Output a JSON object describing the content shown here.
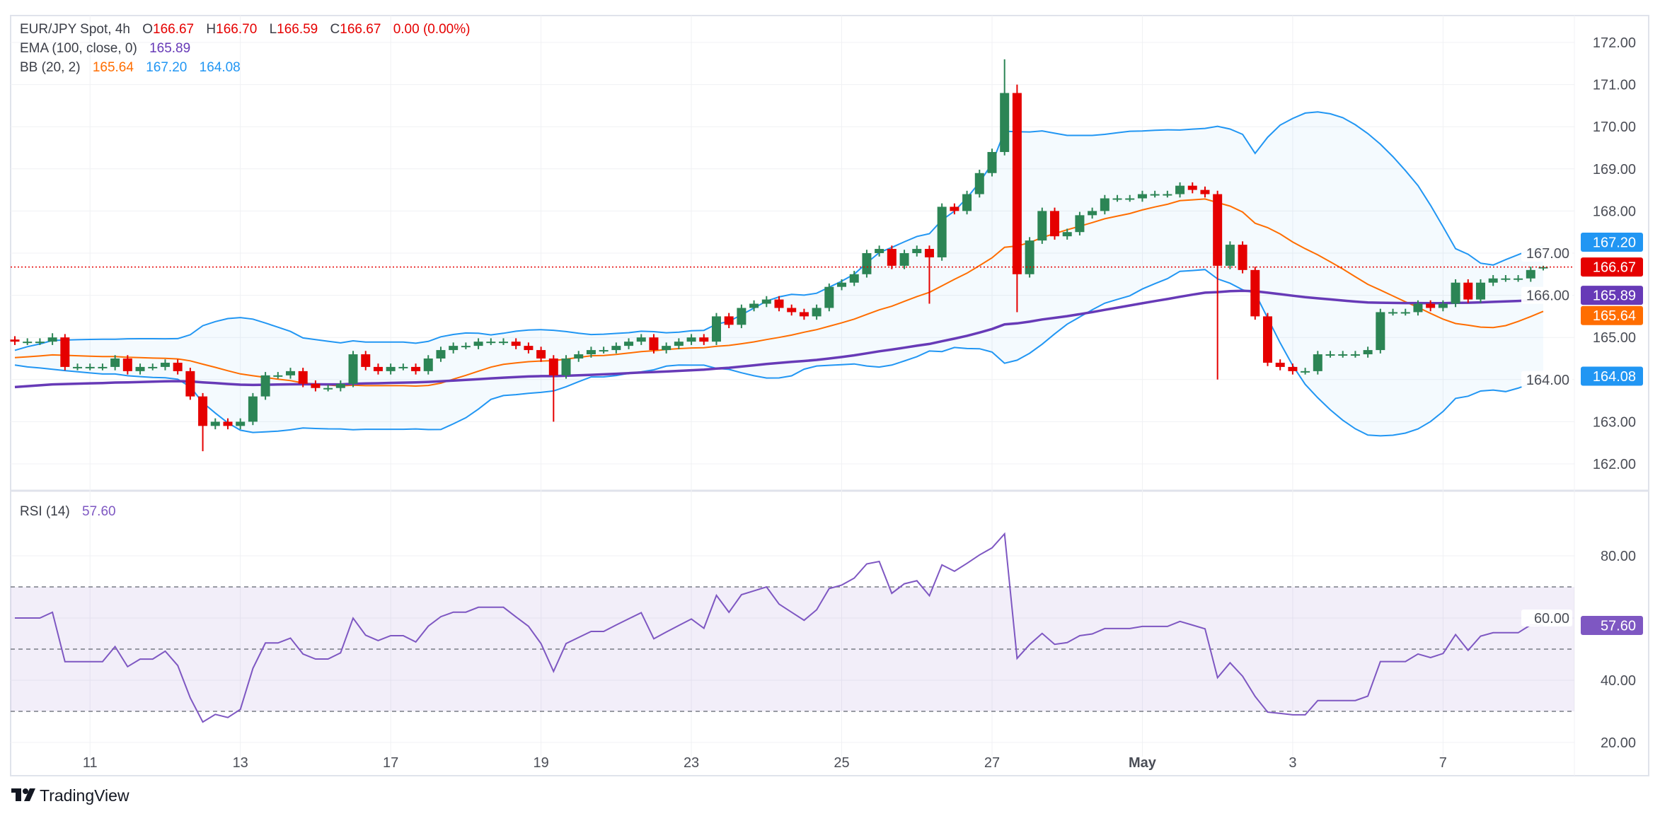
{
  "legend": {
    "symbol": "EUR/JPY Spot, 4h",
    "o_label": "O",
    "o_value": "166.67",
    "h_label": "H",
    "h_value": "166.70",
    "l_label": "L",
    "l_value": "166.59",
    "c_label": "C",
    "c_value": "166.67",
    "change": "0.00 (0.00%)",
    "ema_label": "EMA (100, close, 0)",
    "ema_value": "165.89",
    "bb_label": "BB (20, 2)",
    "bb_basis": "165.64",
    "bb_upper": "167.20",
    "bb_lower": "164.08",
    "rsi_label": "RSI (14)",
    "rsi_value": "57.60"
  },
  "price_axis": {
    "ticks": [
      "172.00",
      "171.00",
      "170.00",
      "169.00",
      "168.00",
      "167.00",
      "166.00",
      "165.00",
      "164.00",
      "163.00",
      "162.00"
    ],
    "badges": [
      {
        "value": "167.20",
        "color": "#2196f3"
      },
      {
        "value": "166.67",
        "color": "#e50000"
      },
      {
        "value": "165.89",
        "color": "#673ab7"
      },
      {
        "value": "165.64",
        "color": "#ff6d00"
      },
      {
        "value": "164.08",
        "color": "#2196f3"
      }
    ]
  },
  "rsi_axis": {
    "ticks": [
      "80.00",
      "60.00",
      "40.00",
      "20.00"
    ],
    "badge": {
      "value": "57.60",
      "color": "#7e57c2"
    }
  },
  "time_axis": {
    "labels": [
      "11",
      "13",
      "17",
      "19",
      "23",
      "25",
      "27",
      "May",
      "3",
      "7"
    ]
  },
  "branding": {
    "name": "TradingView"
  },
  "colors": {
    "up": "#2c8555",
    "down": "#e50000",
    "ema": "#673ab7",
    "bb_basis": "#ff6d00",
    "bb_band": "#2196f3",
    "rsi": "#7e57c2"
  },
  "chart_data": {
    "type": "candlestick",
    "symbol": "EUR/JPY",
    "timeframe": "4h",
    "ylim": [
      161.6,
      172.3
    ],
    "rsi_ylim": [
      18,
      95
    ],
    "rsi_levels": [
      70,
      50,
      30
    ],
    "grid": true,
    "close": [
      164.9,
      164.9,
      164.9,
      165.0,
      164.3,
      164.3,
      164.3,
      164.3,
      164.5,
      164.2,
      164.3,
      164.3,
      164.4,
      164.2,
      163.6,
      162.9,
      163.0,
      162.9,
      163.0,
      163.6,
      164.1,
      164.1,
      164.2,
      163.9,
      163.8,
      163.8,
      163.9,
      164.6,
      164.3,
      164.2,
      164.3,
      164.3,
      164.2,
      164.5,
      164.7,
      164.8,
      164.8,
      164.9,
      164.9,
      164.9,
      164.8,
      164.7,
      164.5,
      164.1,
      164.5,
      164.6,
      164.7,
      164.7,
      164.8,
      164.9,
      165.0,
      164.7,
      164.8,
      164.9,
      165.0,
      164.9,
      165.5,
      165.3,
      165.7,
      165.8,
      165.9,
      165.7,
      165.6,
      165.5,
      165.7,
      166.2,
      166.3,
      166.5,
      167.0,
      167.1,
      166.7,
      167.0,
      167.1,
      166.9,
      168.1,
      168.0,
      168.4,
      168.9,
      169.4,
      170.8,
      166.5,
      167.3,
      168.0,
      167.4,
      167.5,
      167.9,
      168.0,
      168.3,
      168.3,
      168.3,
      168.4,
      168.4,
      168.4,
      168.6,
      168.5,
      168.4,
      166.7,
      167.2,
      166.6,
      165.5,
      164.4,
      164.3,
      164.2,
      164.2,
      164.6,
      164.6,
      164.6,
      164.6,
      164.7,
      165.6,
      165.6,
      165.6,
      165.8,
      165.7,
      165.8,
      166.3,
      165.9,
      166.3,
      166.4,
      166.4,
      166.4,
      166.6,
      166.67
    ],
    "notable_wicks": [
      {
        "bar": 3,
        "high": 165.1
      },
      {
        "bar": 15,
        "low": 162.3
      },
      {
        "bar": 43,
        "low": 163.0
      },
      {
        "bar": 79,
        "high": 171.6
      },
      {
        "bar": 80,
        "high": 171.0,
        "low": 165.6
      },
      {
        "bar": 96,
        "low": 164.0
      },
      {
        "bar": 73,
        "low": 165.8
      }
    ],
    "last": {
      "open": 166.67,
      "high": 166.7,
      "low": 166.59,
      "close": 166.67
    },
    "indicators": {
      "ema_100": 165.89,
      "bb_basis": 165.64,
      "bb_upper": 167.2,
      "bb_lower": 164.08,
      "rsi_14": 57.6
    }
  }
}
